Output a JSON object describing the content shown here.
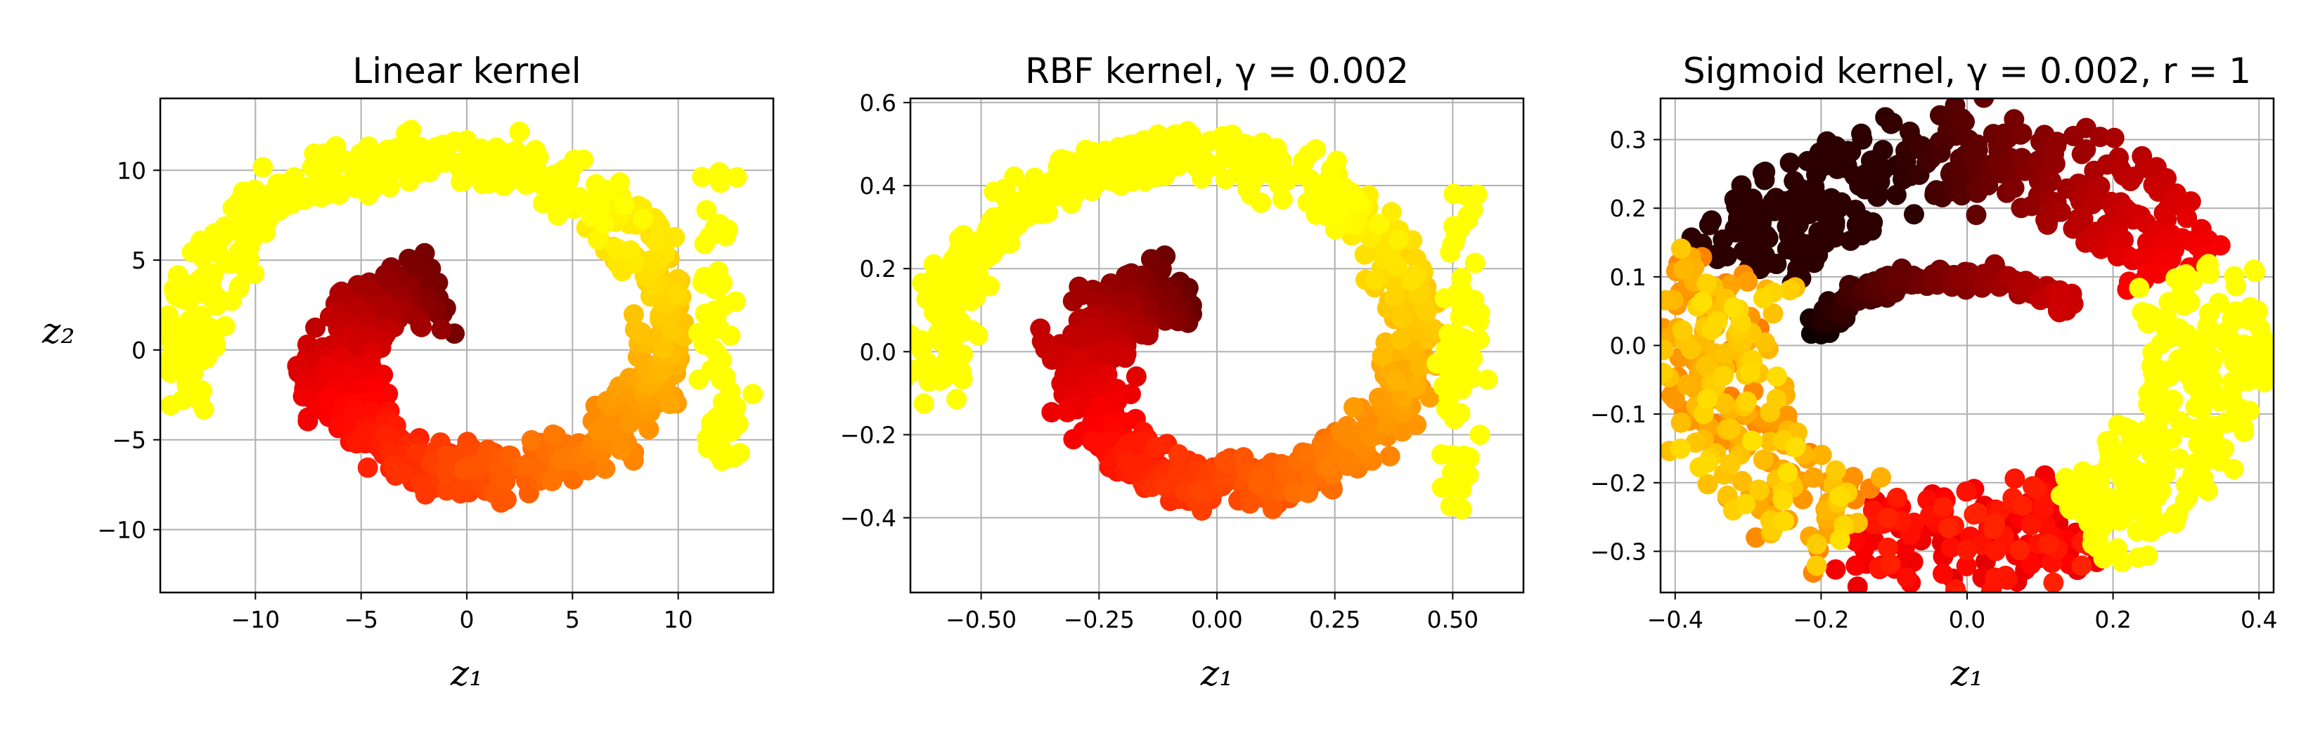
{
  "chart_data": [
    {
      "type": "scatter",
      "title": "Linear kernel",
      "xlabel": "z₁",
      "ylabel": "z₂",
      "xlim": [
        -14.5,
        14.5
      ],
      "ylim": [
        -13.5,
        14
      ],
      "xticks": [
        -10,
        -5,
        0,
        5,
        10
      ],
      "xtick_labels": [
        "−10",
        "−5",
        "0",
        "5",
        "10"
      ],
      "yticks": [
        -10,
        -5,
        0,
        5,
        10
      ],
      "ytick_labels": [
        "−10",
        "−5",
        "0",
        "5",
        "10"
      ],
      "grid": true,
      "colormap": "hot",
      "shape": {
        "kind": "roll",
        "cx": -0.3,
        "cy": 0.2,
        "rOut": 13.0,
        "rIn": 3.5,
        "aStart": 190,
        "aSpan": 440,
        "jitterR": 1.3,
        "jitterIn": 1.9,
        "angleJitter": 10,
        "sx": 1.0,
        "sy": 0.92,
        "tEnd": 0.84,
        "extraYellow": {
          "cx": 12.0,
          "cy": 2.0,
          "rx": 1.6,
          "ry": 8.5,
          "n": 60
        }
      }
    },
    {
      "type": "scatter",
      "title": "RBF kernel, γ = 0.002",
      "xlabel": "z₁",
      "ylabel": "",
      "xlim": [
        -0.65,
        0.65
      ],
      "ylim": [
        -0.58,
        0.61
      ],
      "xticks": [
        -0.5,
        -0.25,
        0.0,
        0.25,
        0.5
      ],
      "xtick_labels": [
        "−0.50",
        "−0.25",
        "0.00",
        "0.25",
        "0.50"
      ],
      "yticks": [
        -0.4,
        -0.2,
        0.0,
        0.2,
        0.4,
        0.6
      ],
      "ytick_labels": [
        "−0.4",
        "−0.2",
        "0.0",
        "0.2",
        "0.4",
        "0.6"
      ],
      "grid": true,
      "colormap": "hot",
      "shape": {
        "kind": "roll",
        "cx": -0.02,
        "cy": 0.0,
        "rOut": 0.57,
        "rIn": 0.17,
        "aStart": 188,
        "aSpan": 440,
        "jitterR": 0.055,
        "jitterIn": 0.075,
        "angleJitter": 10,
        "sx": 1.0,
        "sy": 0.93,
        "tEnd": 0.86,
        "extraYellow": {
          "cx": 0.52,
          "cy": 0.0,
          "rx": 0.07,
          "ry": 0.38,
          "n": 70
        }
      }
    },
    {
      "type": "scatter",
      "title": "Sigmoid kernel, γ = 0.002, r = 1",
      "xlabel": "z₁",
      "ylabel": "",
      "xlim": [
        -0.42,
        0.42
      ],
      "ylim": [
        -0.36,
        0.36
      ],
      "xticks": [
        -0.4,
        -0.2,
        0.0,
        0.2,
        0.4
      ],
      "xtick_labels": [
        "−0.4",
        "−0.2",
        "0.0",
        "0.2",
        "0.4"
      ],
      "yticks": [
        -0.3,
        -0.2,
        -0.1,
        0.0,
        0.1,
        0.2,
        0.3
      ],
      "ytick_labels": [
        "−0.3",
        "−0.2",
        "−0.1",
        "0.0",
        "0.1",
        "0.2",
        "0.3"
      ],
      "grid": true,
      "colormap": "hot",
      "shape": {
        "kind": "sigmoid",
        "cx": -0.01,
        "cy": -0.01,
        "rx": 0.35,
        "ry": 0.29,
        "jitter": 0.04,
        "n": 1000
      }
    }
  ]
}
